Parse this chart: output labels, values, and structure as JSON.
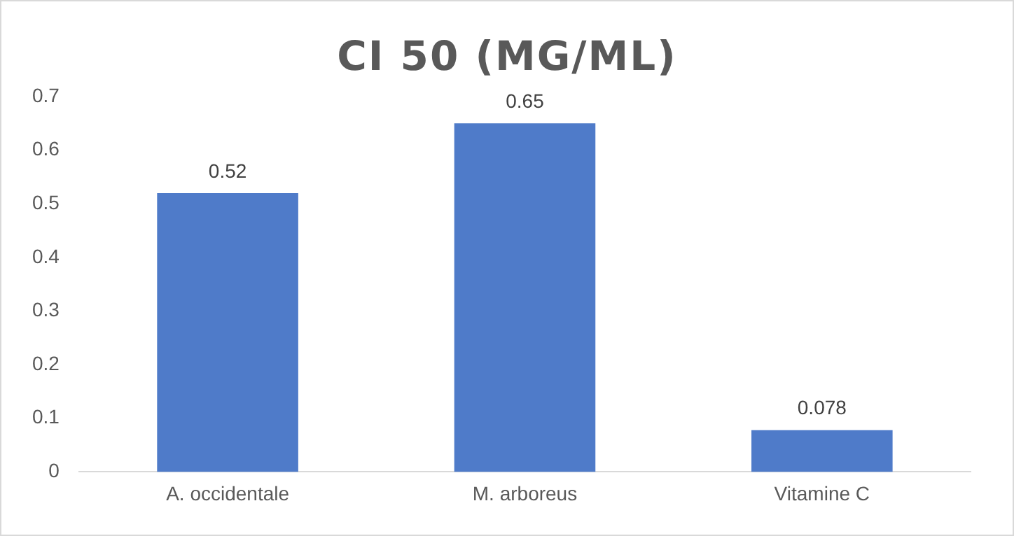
{
  "chart_data": {
    "type": "bar",
    "title": "CI 50 (MG/ML)",
    "categories": [
      "A. occidentale",
      "M. arboreus",
      "Vitamine C"
    ],
    "values": [
      0.52,
      0.65,
      0.078
    ],
    "color": "#4f7bc9",
    "ylim": [
      0,
      0.7
    ],
    "yticks": [
      0,
      0.1,
      0.2,
      0.3,
      0.4,
      0.5,
      0.6,
      0.7
    ],
    "grid": false,
    "legend": false,
    "data_labels": true
  }
}
